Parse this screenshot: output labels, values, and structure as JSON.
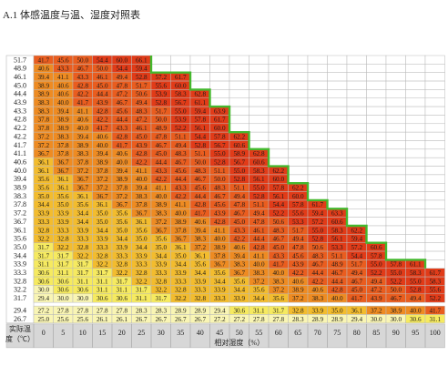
{
  "title": "A.1 体感温度与温、湿度对照表",
  "axis": {
    "y_label_line1": "实际温",
    "y_label_line2": "度（℃）",
    "x_label": "相对湿度（%）"
  },
  "humidity": [
    0,
    5,
    10,
    15,
    20,
    25,
    30,
    35,
    40,
    45,
    50,
    55,
    60,
    65,
    70,
    75,
    80,
    85,
    90,
    95,
    100
  ],
  "temperatures": [
    "51.7",
    "48.9",
    "46.1",
    "43.3",
    "40.6",
    "37.8",
    "35.0",
    "32.2",
    "29.4",
    "26.7"
  ],
  "rows": [
    {
      "label": "51.7",
      "values": [
        "41.7",
        "45.6",
        "50.0",
        "54.4",
        "60.0",
        "66.1"
      ]
    },
    {
      "label": "48.9",
      "values": [
        "40.6",
        "43.3",
        "46.7",
        "50.0",
        "54.4",
        "59.4"
      ]
    },
    {
      "label": "46.1",
      "values": [
        "39.4",
        "41.1",
        "43.3",
        "46.1",
        "49.4",
        "52.8",
        "57.2",
        "61.7"
      ]
    },
    {
      "label": "45.0",
      "values": [
        "38.9",
        "40.6",
        "42.8",
        "45.0",
        "47.8",
        "51.7",
        "55.6",
        "60.0"
      ]
    },
    {
      "label": "44.4",
      "values": [
        "38.9",
        "40.6",
        "42.2",
        "44.4",
        "47.2",
        "50.6",
        "53.9",
        "58.3",
        "62.8"
      ]
    },
    {
      "label": "43.9",
      "values": [
        "38.3",
        "40.0",
        "41.7",
        "43.9",
        "46.7",
        "49.4",
        "52.8",
        "56.7",
        "61.1"
      ]
    },
    {
      "label": "43.3",
      "values": [
        "38.3",
        "39.4",
        "41.1",
        "42.8",
        "45.6",
        "48.3",
        "51.7",
        "55.0",
        "59.4",
        "63.9"
      ]
    },
    {
      "label": "42.8",
      "values": [
        "37.8",
        "38.9",
        "40.6",
        "42.2",
        "44.4",
        "47.2",
        "50.0",
        "53.9",
        "57.8",
        "61.7"
      ]
    },
    {
      "label": "42.2",
      "values": [
        "37.8",
        "38.9",
        "40.0",
        "41.7",
        "43.3",
        "46.1",
        "48.9",
        "52.2",
        "56.1",
        "60.0"
      ]
    },
    {
      "label": "42.2",
      "values": [
        "37.2",
        "38.3",
        "39.4",
        "40.6",
        "42.8",
        "45.0",
        "47.8",
        "51.1",
        "54.4",
        "57.8",
        "62.2"
      ]
    },
    {
      "label": "41.7",
      "values": [
        "37.2",
        "37.8",
        "38.9",
        "40.0",
        "41.7",
        "43.9",
        "46.7",
        "49.4",
        "52.8",
        "56.7",
        "60.6"
      ]
    },
    {
      "label": "41.1",
      "values": [
        "36.7",
        "37.8",
        "38.3",
        "39.4",
        "40.6",
        "42.8",
        "45.0",
        "48.3",
        "51.1",
        "55.0",
        "58.9",
        "62.8"
      ]
    },
    {
      "label": "40.6",
      "values": [
        "36.1",
        "36.7",
        "37.8",
        "38.9",
        "40.0",
        "42.2",
        "44.4",
        "46.7",
        "50.0",
        "52.8",
        "56.7",
        "60.6"
      ]
    },
    {
      "label": "40.0",
      "values": [
        "36.1",
        "36.7",
        "37.2",
        "37.8",
        "39.4",
        "41.1",
        "43.3",
        "45.6",
        "48.3",
        "51.1",
        "55.0",
        "58.3",
        "62.2"
      ]
    },
    {
      "label": "39.4",
      "values": [
        "35.6",
        "36.1",
        "36.7",
        "37.2",
        "38.9",
        "40.0",
        "42.2",
        "44.4",
        "46.7",
        "50.0",
        "52.8",
        "56.1",
        "60.0"
      ]
    },
    {
      "label": "38.9",
      "values": [
        "35.6",
        "36.1",
        "36.7",
        "37.2",
        "37.8",
        "39.4",
        "41.1",
        "43.3",
        "45.6",
        "48.3",
        "51.1",
        "55.0",
        "57.8",
        "62.2"
      ]
    },
    {
      "label": "38.3",
      "values": [
        "35.0",
        "35.6",
        "36.1",
        "36.7",
        "37.2",
        "38.3",
        "40.0",
        "42.2",
        "44.4",
        "46.7",
        "49.4",
        "52.8",
        "56.1",
        "60.0"
      ]
    },
    {
      "label": "37.8",
      "values": [
        "34.4",
        "35.0",
        "35.6",
        "36.1",
        "36.7",
        "37.8",
        "38.9",
        "41.1",
        "42.8",
        "45.6",
        "47.8",
        "51.1",
        "54.4",
        "57.8",
        "61.7"
      ]
    },
    {
      "label": "37.2",
      "values": [
        "33.9",
        "33.9",
        "34.4",
        "35.0",
        "35.6",
        "36.7",
        "38.3",
        "40.0",
        "41.7",
        "43.9",
        "46.7",
        "49.4",
        "52.2",
        "55.6",
        "59.4",
        "63.3"
      ]
    },
    {
      "label": "36.7",
      "values": [
        "33.3",
        "33.9",
        "34.4",
        "35.0",
        "35.6",
        "36.1",
        "37.2",
        "38.9",
        "40.6",
        "42.8",
        "45.0",
        "47.8",
        "50.6",
        "53.3",
        "57.2",
        "60.6"
      ]
    },
    {
      "label": "36.1",
      "values": [
        "32.8",
        "33.3",
        "33.9",
        "34.4",
        "35.0",
        "35.6",
        "36.7",
        "37.8",
        "39.4",
        "41.1",
        "43.3",
        "46.1",
        "48.3",
        "51.7",
        "55.0",
        "58.3",
        "62.2"
      ]
    },
    {
      "label": "35.6",
      "values": [
        "32.2",
        "32.8",
        "33.3",
        "33.9",
        "34.4",
        "35.0",
        "35.6",
        "36.7",
        "38.3",
        "40.0",
        "42.2",
        "44.4",
        "46.7",
        "49.4",
        "52.8",
        "56.1",
        "59.4"
      ]
    },
    {
      "label": "35.0",
      "values": [
        "31.7",
        "32.2",
        "32.8",
        "33.3",
        "33.9",
        "34.4",
        "35.0",
        "36.1",
        "37.2",
        "38.9",
        "40.6",
        "42.8",
        "45.0",
        "47.8",
        "50.6",
        "53.3",
        "57.2",
        "60.6"
      ]
    },
    {
      "label": "34.4",
      "values": [
        "31.7",
        "31.7",
        "32.2",
        "32.8",
        "33.3",
        "33.9",
        "34.4",
        "35.0",
        "36.1",
        "37.8",
        "39.4",
        "41.1",
        "43.3",
        "45.6",
        "48.3",
        "51.1",
        "54.4",
        "57.8"
      ]
    },
    {
      "label": "33.9",
      "values": [
        "31.1",
        "31.7",
        "31.7",
        "32.2",
        "32.8",
        "33.3",
        "33.9",
        "34.4",
        "35.6",
        "36.7",
        "38.3",
        "40.0",
        "41.7",
        "43.9",
        "46.7",
        "48.9",
        "51.7",
        "55.0",
        "57.8",
        "61.1"
      ]
    },
    {
      "label": "33.3",
      "values": [
        "30.6",
        "31.1",
        "31.7",
        "31.7",
        "32.2",
        "32.8",
        "33.3",
        "33.9",
        "34.4",
        "35.6",
        "36.7",
        "38.3",
        "40.0",
        "42.2",
        "44.4",
        "46.7",
        "49.4",
        "52.2",
        "55.0",
        "58.3",
        "61.7"
      ]
    },
    {
      "label": "32.8",
      "values": [
        "30.6",
        "30.6",
        "31.1",
        "31.1",
        "31.7",
        "32.2",
        "32.8",
        "33.3",
        "33.9",
        "34.4",
        "35.6",
        "37.2",
        "38.3",
        "40.6",
        "42.2",
        "44.4",
        "46.7",
        "49.4",
        "52.2",
        "55.0",
        "58.3"
      ]
    },
    {
      "label": "32.2",
      "values": [
        "30.0",
        "30.6",
        "30.6",
        "31.1",
        "31.1",
        "31.7",
        "32.2",
        "32.8",
        "33.3",
        "33.9",
        "34.4",
        "35.6",
        "37.2",
        "38.9",
        "40.6",
        "42.8",
        "45.0",
        "47.2",
        "50.0",
        "52.8",
        "55.6"
      ]
    },
    {
      "label": "31.7",
      "values": [
        "29.4",
        "30.0",
        "30.0",
        "30.6",
        "30.6",
        "31.1",
        "31.7",
        "32.2",
        "32.8",
        "33.3",
        "33.9",
        "34.4",
        "35.6",
        "37.2",
        "38.3",
        "40.0",
        "41.7",
        "43.9",
        "46.7",
        "49.4",
        "52.2"
      ]
    },
    {
      "label": "29.4",
      "values": [
        "27.2",
        "27.8",
        "27.8",
        "27.8",
        "27.8",
        "28.3",
        "28.3",
        "28.9",
        "28.9",
        "29.4",
        "30.6",
        "31.1",
        "31.7",
        "32.8",
        "33.9",
        "35.0",
        "36.1",
        "37.2",
        "38.9",
        "40.0",
        "41.7"
      ]
    },
    {
      "label": "26.7",
      "values": [
        "25.0",
        "25.6",
        "25.6",
        "26.1",
        "26.1",
        "26.7",
        "26.7",
        "26.7",
        "26.7",
        "27.2",
        "27.2",
        "27.8",
        "27.8",
        "28.3",
        "28.9",
        "28.9",
        "29.4",
        "30.0",
        "30.0",
        "30.6",
        "31.1"
      ]
    }
  ],
  "colors": {
    "light_yellow": "#f9f5b4",
    "yellow": "#f6ea60",
    "amber": "#f3bc2e",
    "orange": "#ee8b22",
    "orange_red": "#e95d1f",
    "red": "#e13b18",
    "boundary_green": "#44b82e",
    "grid_line": "#b9b9b9",
    "header_bg": "#d7d7d7"
  }
}
